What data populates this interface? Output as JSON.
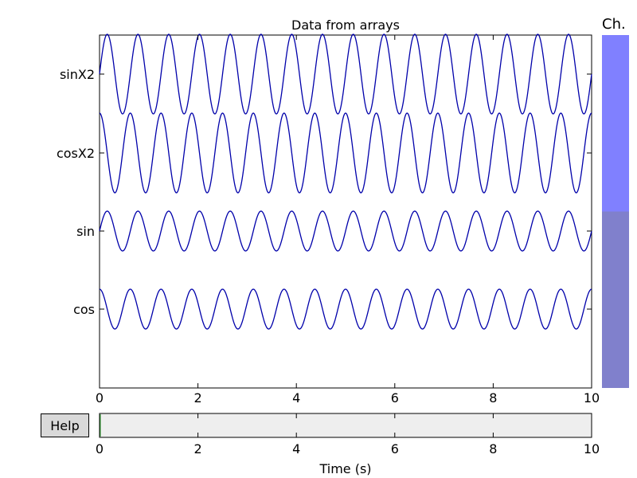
{
  "chart_data": {
    "type": "line",
    "title": "Data from arrays",
    "xlabel": "Time (s)",
    "xlim": [
      0,
      10
    ],
    "xticks": [
      "0",
      "2",
      "4",
      "6",
      "8",
      "10"
    ],
    "channels": [
      {
        "name": "sinX2",
        "func": "sin",
        "frequency_hz": 1.6,
        "amplitude": 1.0,
        "color": "#0000aa"
      },
      {
        "name": "cosX2",
        "func": "cos",
        "frequency_hz": 1.6,
        "amplitude": 1.0,
        "color": "#0000aa"
      },
      {
        "name": "sin",
        "func": "sin",
        "frequency_hz": 1.6,
        "amplitude": 0.5,
        "color": "#0000aa"
      },
      {
        "name": "cos",
        "func": "cos",
        "frequency_hz": 1.6,
        "amplitude": 0.5,
        "color": "#0000aa"
      }
    ],
    "channel_scrollbar": {
      "label": "Ch.",
      "visible_fraction": 0.5,
      "selected_color": "#8080ff",
      "rest_color": "#8080cc"
    },
    "time_scrollbar": {
      "background": "#eeeeee"
    }
  },
  "help": {
    "label": "Help"
  }
}
